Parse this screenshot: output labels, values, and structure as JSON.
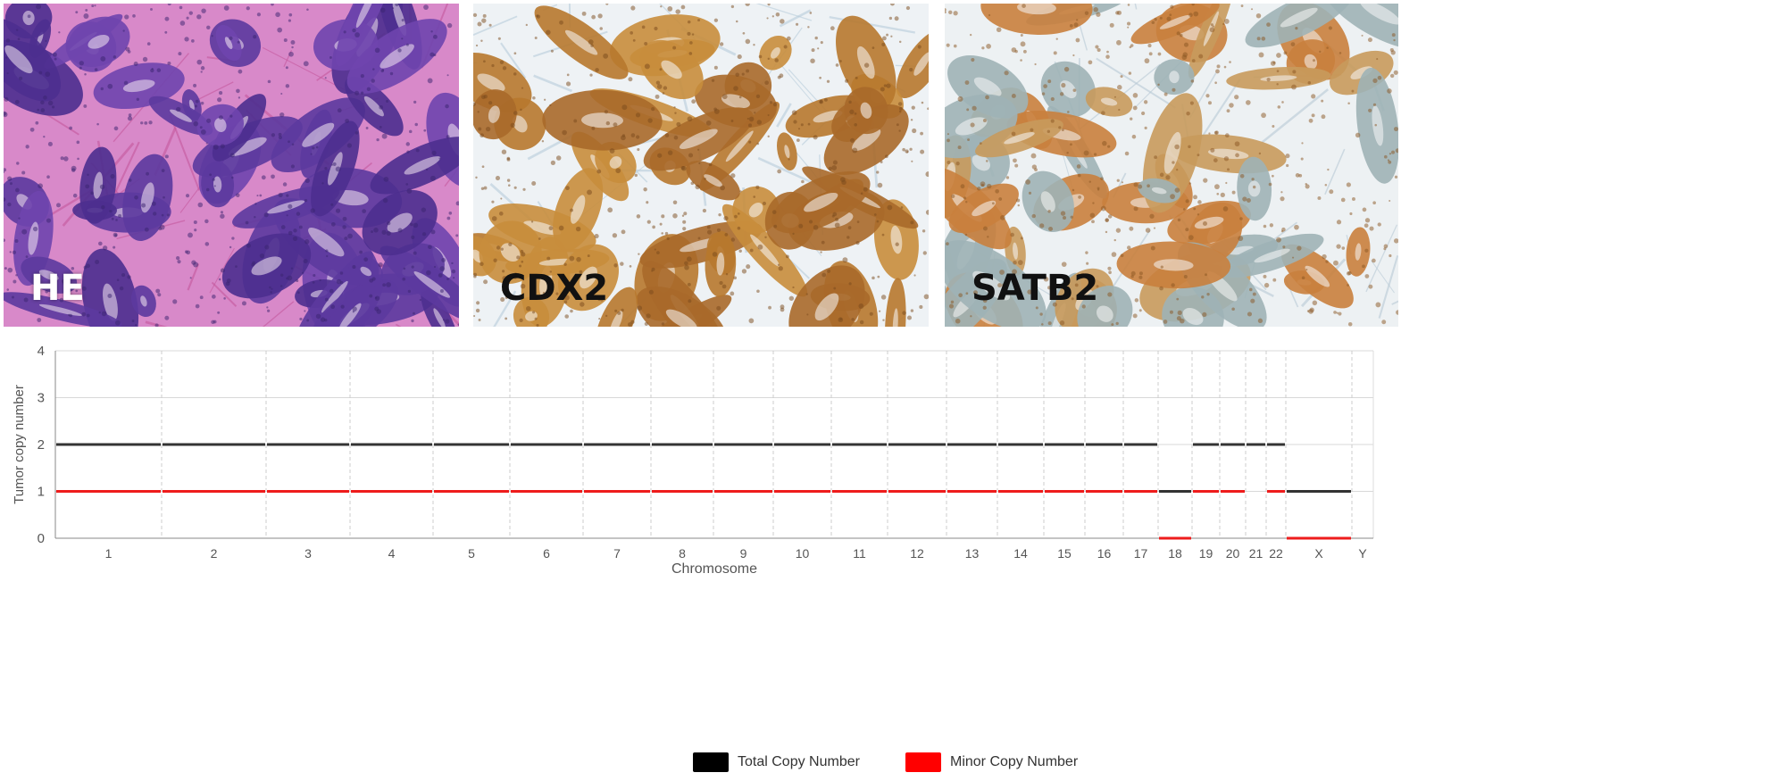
{
  "panels": [
    {
      "label": "HE",
      "style": "he"
    },
    {
      "label": "CDX2",
      "style": "cdx2"
    },
    {
      "label": "SATB2",
      "style": "satb2"
    }
  ],
  "chart_data": {
    "type": "line",
    "title": "",
    "xlabel": "Chromosome",
    "ylabel": "Tumor copy number",
    "ylim": [
      0,
      4
    ],
    "yticks": [
      "0",
      "1",
      "2",
      "3",
      "4"
    ],
    "grid": true,
    "legend_position": "bottom-center",
    "chromosomes": [
      {
        "name": "1",
        "total": 2,
        "minor": 1
      },
      {
        "name": "2",
        "total": 2,
        "minor": 1
      },
      {
        "name": "3",
        "total": 2,
        "minor": 1
      },
      {
        "name": "4",
        "total": 2,
        "minor": 1
      },
      {
        "name": "5",
        "total": 2,
        "minor": 1
      },
      {
        "name": "6",
        "total": 2,
        "minor": 1
      },
      {
        "name": "7",
        "total": 2,
        "minor": 1
      },
      {
        "name": "8",
        "total": 2,
        "minor": 1
      },
      {
        "name": "9",
        "total": 2,
        "minor": 1
      },
      {
        "name": "10",
        "total": 2,
        "minor": 1
      },
      {
        "name": "11",
        "total": 2,
        "minor": 1
      },
      {
        "name": "12",
        "total": 2,
        "minor": 1
      },
      {
        "name": "13",
        "total": 2,
        "minor": 1
      },
      {
        "name": "14",
        "total": 2,
        "minor": 1
      },
      {
        "name": "15",
        "total": 2,
        "minor": 1
      },
      {
        "name": "16",
        "total": 2,
        "minor": 1
      },
      {
        "name": "17",
        "total": 2,
        "minor": 1
      },
      {
        "name": "18",
        "total": 1,
        "minor": 0
      },
      {
        "name": "19",
        "total": 2,
        "minor": 1
      },
      {
        "name": "20",
        "total": 2,
        "minor": 1
      },
      {
        "name": "21",
        "total": 2,
        "minor": null
      },
      {
        "name": "22",
        "total": 2,
        "minor": 1
      },
      {
        "name": "X",
        "total": 1,
        "minor": 0
      },
      {
        "name": "Y",
        "total": null,
        "minor": null
      }
    ],
    "series": [
      {
        "name": "Total Copy Number",
        "key": "total",
        "color": "#333333"
      },
      {
        "name": "Minor Copy Number",
        "key": "minor",
        "color": "#ee1c1c"
      }
    ]
  },
  "legend": {
    "total_label": "Total Copy Number",
    "minor_label": "Minor Copy Number",
    "total_color": "#000000",
    "minor_color": "#ff0000"
  }
}
